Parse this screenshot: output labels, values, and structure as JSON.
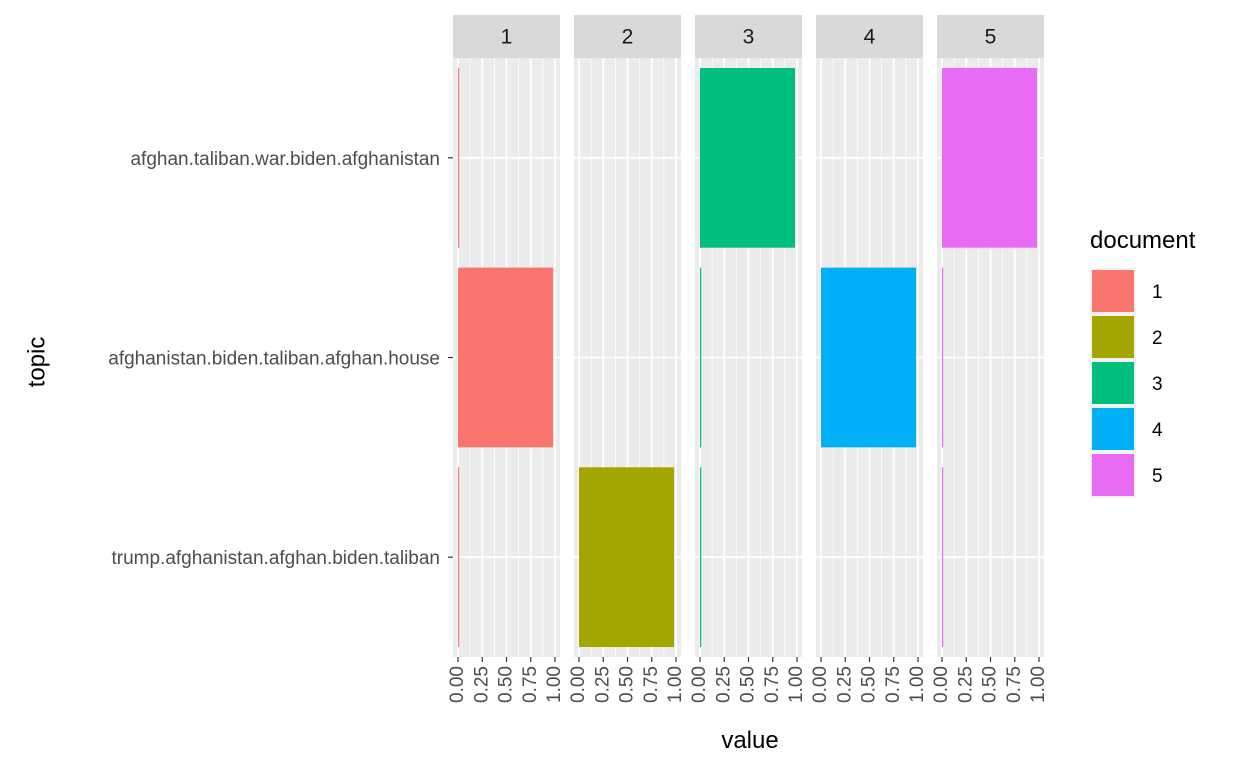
{
  "chart_data": {
    "type": "bar",
    "orientation": "horizontal",
    "facet_by": "document",
    "facets": [
      "1",
      "2",
      "3",
      "4",
      "5"
    ],
    "categories": [
      "afghan.taliban.war.biden.afghanistan",
      "afghanistan.biden.taliban.afghan.house",
      "trump.afghanistan.afghan.biden.taliban"
    ],
    "series": [
      {
        "name": "1",
        "facet": "1",
        "color": "#F8766D",
        "values": [
          0.01,
          0.98,
          0.01
        ]
      },
      {
        "name": "2",
        "facet": "2",
        "color": "#A3A500",
        "values": [
          0.0,
          0.0,
          0.98
        ]
      },
      {
        "name": "3",
        "facet": "3",
        "color": "#00BF7D",
        "values": [
          0.98,
          0.01,
          0.01
        ]
      },
      {
        "name": "4",
        "facet": "4",
        "color": "#00B0F6",
        "values": [
          0.0,
          0.98,
          0.0
        ]
      },
      {
        "name": "5",
        "facet": "5",
        "color": "#E76BF3",
        "values": [
          0.98,
          0.01,
          0.01
        ]
      }
    ],
    "xlabel": "value",
    "ylabel": "topic",
    "xlim": [
      0,
      1
    ],
    "xticks": [
      "0.00",
      "0.25",
      "0.50",
      "0.75",
      "1.00"
    ],
    "grid": true,
    "legend": {
      "title": "document",
      "placement": "right",
      "entries": [
        "1",
        "2",
        "3",
        "4",
        "5"
      ]
    }
  }
}
